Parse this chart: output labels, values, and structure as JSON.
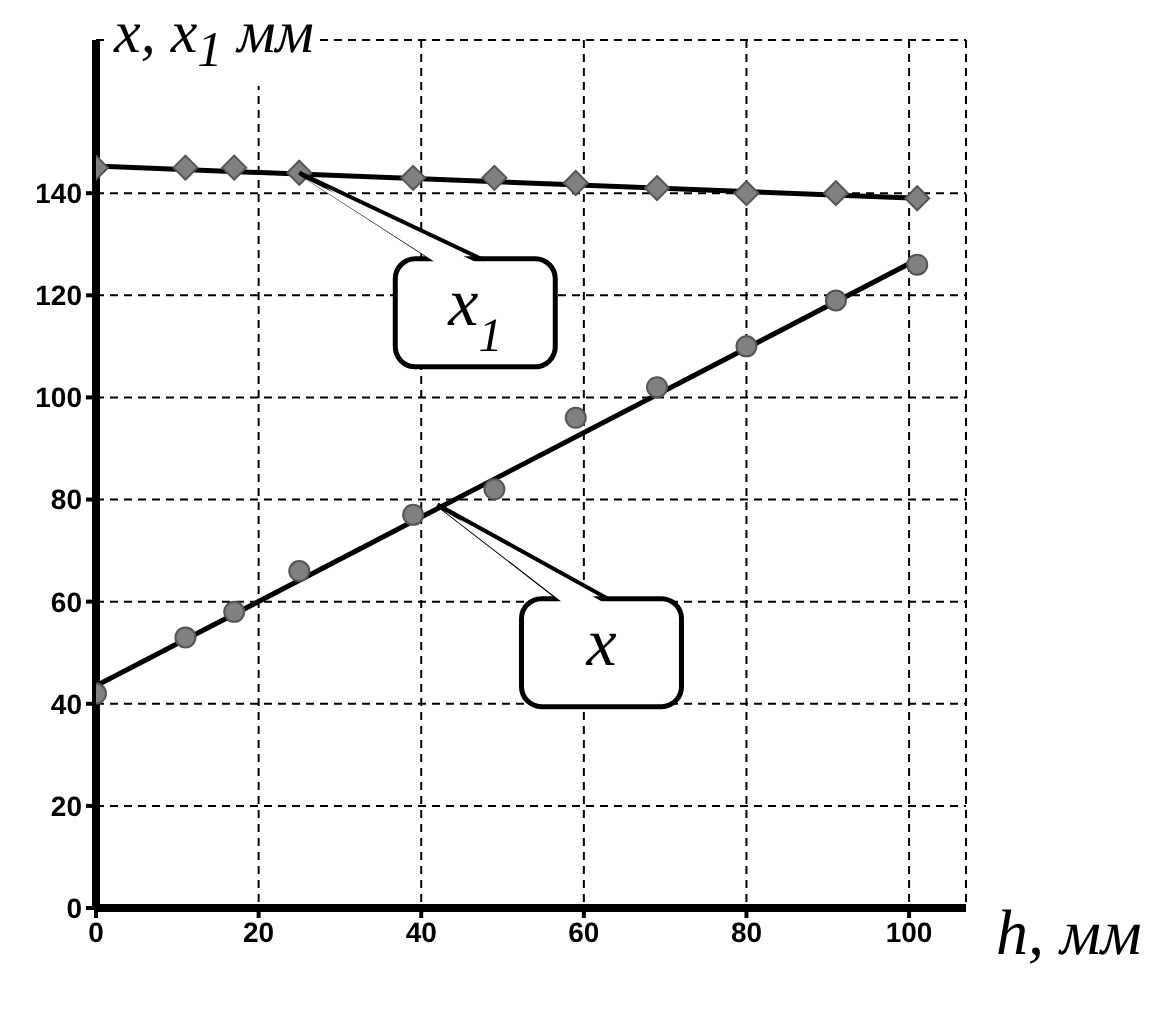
{
  "chart_data": {
    "type": "scatter",
    "xlabel": "h, мм",
    "ylabel": "x, x$_{1}$ мм",
    "xlim": [
      0,
      107
    ],
    "ylim": [
      0,
      170
    ],
    "xticks": [
      0,
      20,
      40,
      60,
      80,
      100
    ],
    "yticks": [
      0,
      20,
      40,
      60,
      80,
      100,
      120,
      140
    ],
    "grid": true,
    "legend": false,
    "series": [
      {
        "marker": "diamond",
        "color": "#808080",
        "x": [
          0,
          11,
          17,
          25,
          39,
          49,
          59,
          69,
          80,
          91,
          101
        ],
        "values": [
          145,
          145,
          145,
          144,
          143,
          143,
          142,
          141,
          140,
          140,
          139
        ]
      },
      {
        "marker": "circle",
        "color": "#808080",
        "x": [
          0,
          11,
          17,
          25,
          39,
          49,
          59,
          69,
          80,
          91,
          101
        ],
        "values": [
          42,
          53,
          58,
          66,
          77,
          82,
          96,
          102,
          110,
          119,
          126
        ]
      },
      {
        "type": "line",
        "marker": "none",
        "color": "#000000",
        "x": [
          0,
          101
        ],
        "values": [
          145.3,
          139
        ]
      },
      {
        "type": "line",
        "marker": "none",
        "color": "#000000",
        "x": [
          0,
          101
        ],
        "values": [
          43.5,
          127
        ]
      }
    ],
    "annotations": [
      {
        "text": "x$_{1}$",
        "x": 25,
        "y": 144
      },
      {
        "text": "x",
        "x": 42,
        "y": 79
      }
    ]
  }
}
